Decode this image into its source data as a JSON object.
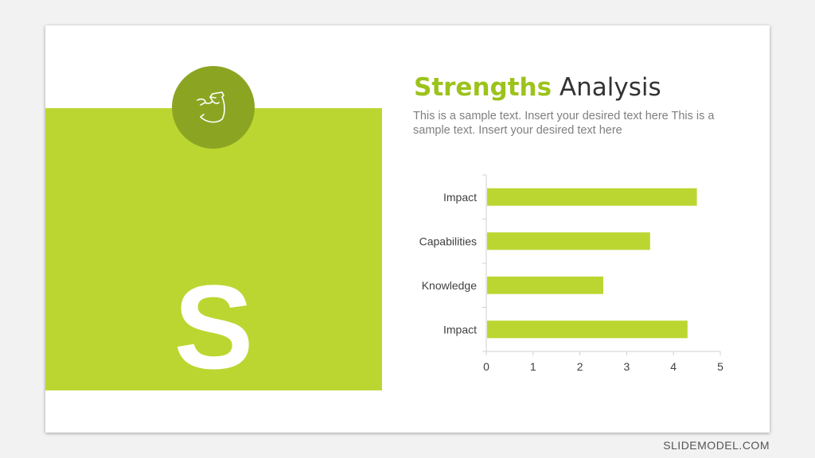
{
  "slide": {
    "letter": "S",
    "word": "strengths",
    "icon": "flexed-bicep-icon",
    "title_highlight": "Strengths",
    "title_rest": "Analysis",
    "subtitle": "This is a sample text. Insert your desired text here This is a sample text. Insert your desired text here",
    "colors": {
      "accent": "#bcd631",
      "accent_dark": "#8ba523",
      "title_accent": "#9cc31b"
    }
  },
  "chart_data": {
    "type": "bar",
    "orientation": "horizontal",
    "categories": [
      "Impact",
      "Capabilities",
      "Knowledge",
      "Impact"
    ],
    "values": [
      4.5,
      3.5,
      2.5,
      4.3
    ],
    "xlim": [
      0,
      5
    ],
    "xticks": [
      "0",
      "1",
      "2",
      "3",
      "4",
      "5"
    ],
    "grid": false,
    "bar_color": "#bcd631"
  },
  "footer": "SLIDEMODEL.COM"
}
